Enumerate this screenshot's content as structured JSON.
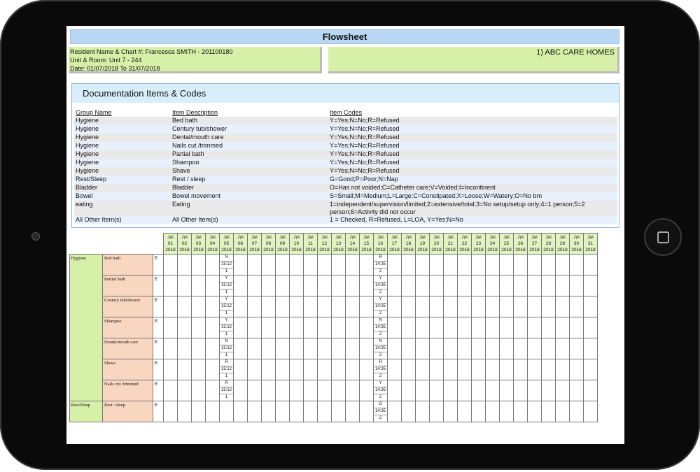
{
  "title": "Flowsheet",
  "resident": {
    "line1": "Resident Name & Chart #:  Francesca SMITH  -  201100180",
    "line2": "Unit & Room:  Unit 7 - 244",
    "line3": "Date: 01/07/2018 To 31/07/2018"
  },
  "facility": "1) ABC CARE HOMES",
  "doc": {
    "heading": "Documentation Items & Codes",
    "columns": [
      "Group Name",
      "Item Description",
      "Item Codes"
    ],
    "rows": [
      [
        "Hygiene",
        "Bed bath",
        "Y=Yes;N=No;R=Refused"
      ],
      [
        "Hygiene",
        "Century tub/shower",
        "Y=Yes;N=No;R=Refused"
      ],
      [
        "Hygiene",
        "Dental/mouth care",
        "Y=Yes;N=No;R=Refused"
      ],
      [
        "Hygiene",
        "Nails cut /trimmed",
        "Y=Yes;N=No;R=Refused"
      ],
      [
        "Hygiene",
        "Partial bath",
        "Y=Yes;N=No;R=Refused"
      ],
      [
        "Hygiene",
        "Shampoo",
        "Y=Yes;N=No;R=Refused"
      ],
      [
        "Hygiene",
        "Shave",
        "Y=Yes;N=No;R=Refused"
      ],
      [
        "Rest/Sleep",
        "Rest / sleep",
        "G=Good;P=Poor;N=Nap"
      ],
      [
        "Bladder",
        "Bladder",
        "O=Has not voided;C=Catheter care;V=Voided;I=Incontinent"
      ],
      [
        "Bowel",
        "Bowel movement",
        "S=Small;M=Medium;L=Large;C=Constipated;X=Loose;W=Watery;O=No bm"
      ],
      [
        "eating",
        "Eating",
        "1=independent/supervision/limited;2=extensive/total;3=No setup/setup only;4=1 person;5=2 person;6=Activity did not occur"
      ],
      [
        "All Other Item(s)",
        "All Other Item(s)",
        "1 = Checked, R=Refused, L=LOA, Y=Yes;N=No"
      ]
    ]
  },
  "grid": {
    "month": "Jul",
    "year": "2018",
    "days": [
      "01",
      "02",
      "03",
      "04",
      "05",
      "06",
      "07",
      "08",
      "09",
      "10",
      "11",
      "12",
      "13",
      "14",
      "15",
      "16",
      "17",
      "18",
      "19",
      "20",
      "21",
      "22",
      "23",
      "24",
      "25",
      "26",
      "27",
      "28",
      "29",
      "30",
      "31"
    ],
    "shift": "E",
    "groups": [
      {
        "name": "Hygiene",
        "items": [
          {
            "name": "Bed bath",
            "entries": {
              "05": [
                "N",
                "15:12",
                "1"
              ],
              "16": [
                "R",
                "14:35",
                "2"
              ]
            }
          },
          {
            "name": "Partial bath",
            "entries": {
              "05": [
                "Y",
                "15:12",
                "1"
              ],
              "16": [
                "Y",
                "14:35",
                "2"
              ]
            }
          },
          {
            "name": "Century tub/shower",
            "entries": {
              "05": [
                "Y",
                "15:12",
                "1"
              ],
              "16": [
                "Y",
                "14:35",
                "2"
              ]
            }
          },
          {
            "name": "Shampoo",
            "entries": {
              "05": [
                "Y",
                "15:12",
                "1"
              ],
              "16": [
                "N",
                "14:35",
                "2"
              ]
            }
          },
          {
            "name": "Dental/mouth care",
            "entries": {
              "05": [
                "N",
                "15:12",
                "1"
              ],
              "16": [
                "N",
                "14:35",
                "2"
              ]
            }
          },
          {
            "name": "Shave",
            "entries": {
              "05": [
                "R",
                "15:12",
                "1"
              ],
              "16": [
                "R",
                "14:35",
                "2"
              ]
            }
          },
          {
            "name": "Nails cut /trimmed",
            "entries": {
              "05": [
                "R",
                "15:12",
                "1"
              ],
              "16": [
                "Y",
                "14:35",
                "2"
              ]
            }
          }
        ]
      },
      {
        "name": "Rest/Sleep",
        "items": [
          {
            "name": "Rest / sleep",
            "entries": {
              "16": [
                "G",
                "14:35",
                "2"
              ]
            }
          }
        ]
      }
    ]
  }
}
